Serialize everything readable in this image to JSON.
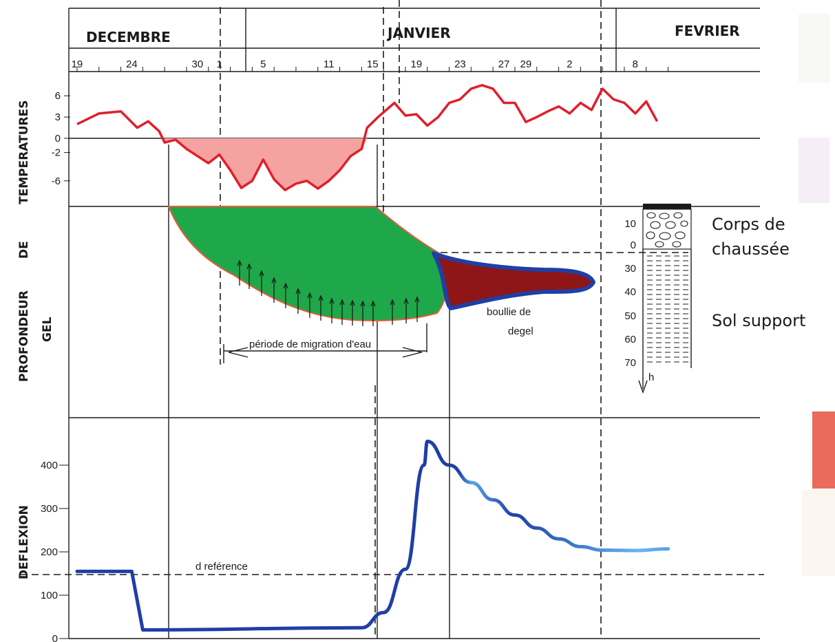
{
  "chart_data": {
    "type": "line",
    "months": [
      "DECEMBRE",
      "JANVIER",
      "FEVRIER"
    ],
    "day_ticks": [
      "19",
      "24",
      "30",
      "1",
      "5",
      "11",
      "15",
      "19",
      "23",
      "27",
      "29",
      "2",
      "8"
    ],
    "panels": {
      "temperatures": {
        "ylabel": "TEMPERATURES",
        "yticks": [
          "6",
          "3",
          "0",
          "-2",
          "-6"
        ],
        "series": [
          {
            "values": [
              [
                19,
                2.0
              ],
              [
                21,
                3.5
              ],
              [
                23,
                3.8
              ],
              [
                24.5,
                1.5
              ],
              [
                25.5,
                2.4
              ],
              [
                26.5,
                1.0
              ],
              [
                27,
                -0.6
              ],
              [
                28,
                -0.2
              ],
              [
                29,
                -1.5
              ],
              [
                30,
                -2.5
              ],
              [
                31,
                -3.5
              ],
              [
                32,
                -2.3
              ],
              [
                33,
                -4.5
              ],
              [
                34,
                -7.0
              ],
              [
                35,
                -6.0
              ],
              [
                36,
                -3.0
              ],
              [
                37,
                -5.8
              ],
              [
                38,
                -7.3
              ],
              [
                39,
                -6.4
              ],
              [
                40,
                -6.0
              ],
              [
                41,
                -7.1
              ],
              [
                42,
                -6.0
              ],
              [
                43,
                -4.5
              ],
              [
                44,
                -2.5
              ],
              [
                45,
                -1.5
              ],
              [
                45.5,
                1.5
              ],
              [
                46.5,
                3.0
              ],
              [
                48,
                5.0
              ],
              [
                49,
                3.2
              ],
              [
                50,
                3.4
              ],
              [
                51,
                1.8
              ],
              [
                52,
                3.0
              ],
              [
                53,
                5.0
              ],
              [
                54,
                5.5
              ],
              [
                55,
                7.0
              ],
              [
                56,
                7.5
              ],
              [
                57,
                7.0
              ],
              [
                58,
                5.0
              ],
              [
                59,
                5.0
              ],
              [
                60,
                2.3
              ],
              [
                61,
                3.0
              ],
              [
                62,
                3.8
              ],
              [
                63,
                4.5
              ],
              [
                64,
                3.5
              ],
              [
                65,
                5.0
              ],
              [
                66,
                4.0
              ],
              [
                67,
                7.0
              ],
              [
                68,
                5.5
              ],
              [
                69,
                5.0
              ],
              [
                70,
                3.5
              ],
              [
                71,
                5.2
              ],
              [
                72,
                2.4
              ]
            ]
          }
        ],
        "shaded": "frost period below 0"
      },
      "profondeur_de_gel": {
        "ylabel": [
          "PROFONDEUR",
          "DE",
          "GEL"
        ],
        "annotations": [
          "période   de  migration d'eau",
          "boullie  de",
          "degel"
        ],
        "soil_column": {
          "ticks": [
            "10",
            "0",
            "30",
            "40",
            "50",
            "60",
            "70"
          ],
          "axis_label": "h",
          "layers": [
            "Corps de chaussée",
            "Sol support"
          ]
        }
      },
      "deflexion": {
        "ylabel": "DEFLEXION",
        "yticks": [
          "400",
          "300",
          "200",
          "100",
          "0"
        ],
        "ylim": [
          0,
          450
        ],
        "reference_label": "d      reférence",
        "reference_value": 150,
        "series": [
          {
            "values": [
              [
                19,
                155
              ],
              [
                24,
                155
              ],
              [
                25,
                20
              ],
              [
                45,
                25
              ],
              [
                47,
                60
              ],
              [
                49,
                160
              ],
              [
                50.7,
                400
              ],
              [
                51,
                455
              ],
              [
                53,
                400
              ],
              [
                55,
                360
              ],
              [
                57,
                320
              ],
              [
                59,
                285
              ],
              [
                61,
                255
              ],
              [
                63,
                230
              ],
              [
                65,
                212
              ],
              [
                67,
                204
              ],
              [
                70,
                203
              ],
              [
                73,
                207
              ]
            ]
          }
        ]
      }
    },
    "colors": {
      "temperature_line": "#e01f2a",
      "frost_fill": "#f5a3a0",
      "frost_zone": "#1fa84a",
      "thaw_zone": "#8e1616",
      "deflection_line": "#1f3fa6",
      "deflection_peak": "#5aa6e6"
    }
  }
}
